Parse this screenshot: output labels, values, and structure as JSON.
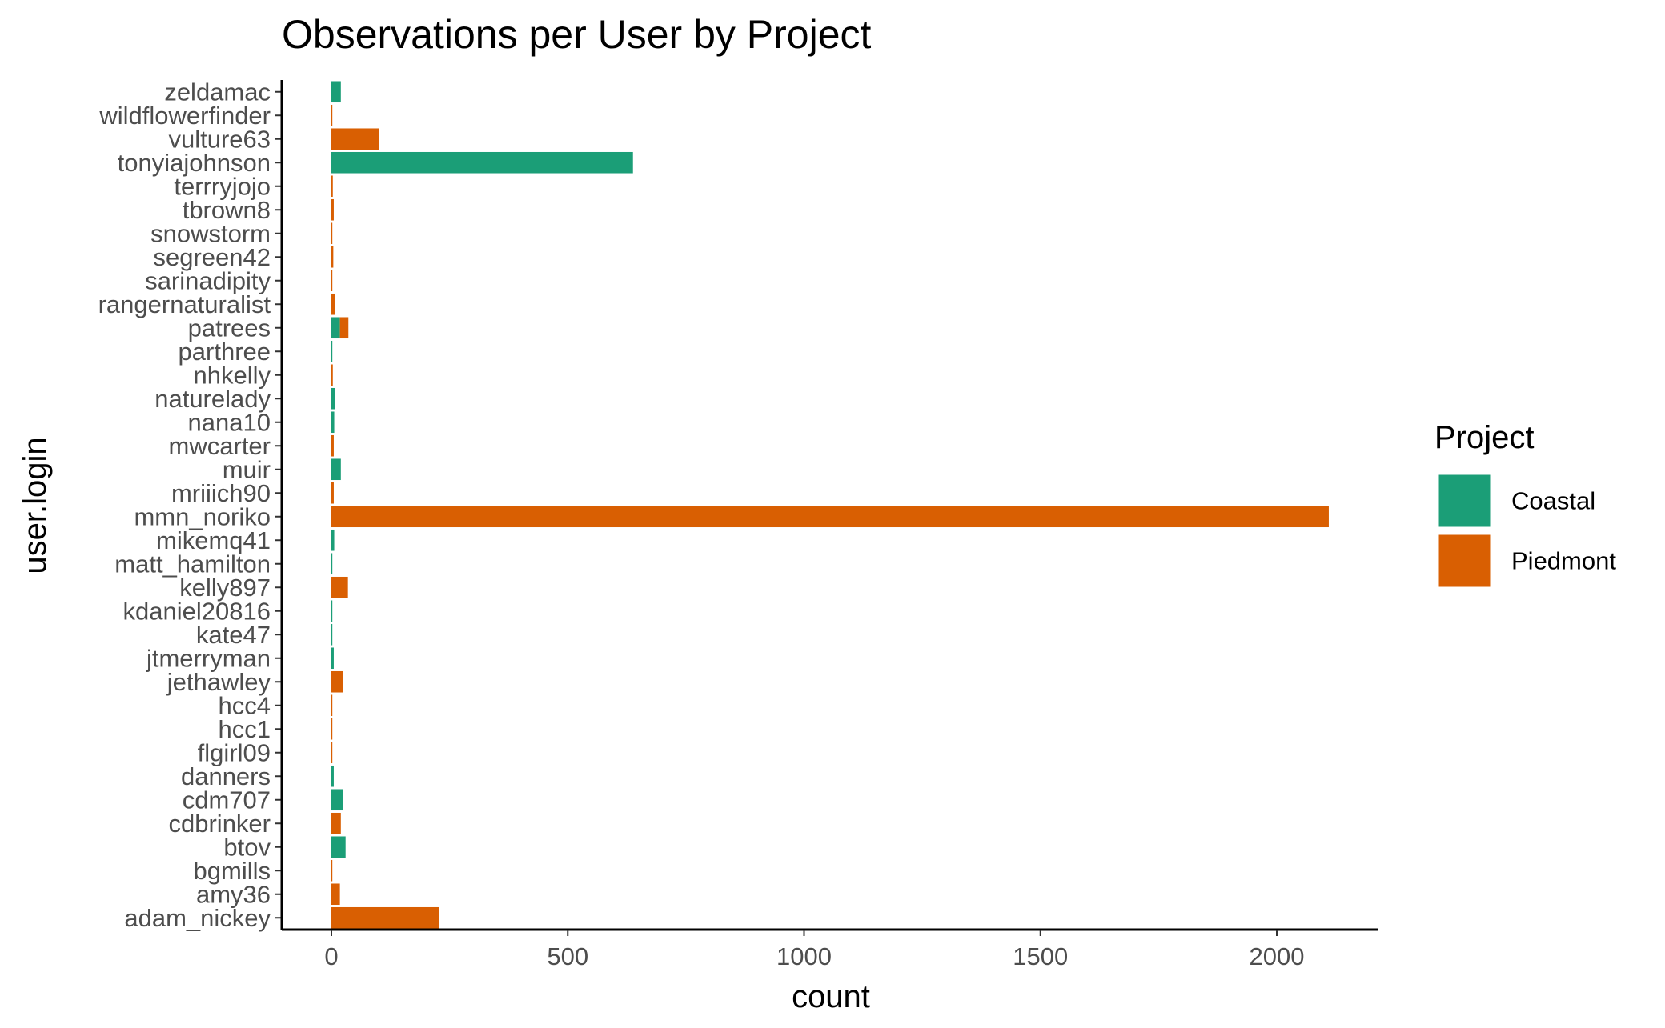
{
  "chart_data": {
    "type": "bar",
    "orientation": "horizontal",
    "stacked": true,
    "title": "Observations per User by Project",
    "xlabel": "count",
    "ylabel": "user.login",
    "xlim": [
      -100,
      2200
    ],
    "xticks": [
      0,
      500,
      1000,
      1500,
      2000
    ],
    "xtick_labels": [
      "0",
      "500",
      "1000",
      "1500",
      "2000"
    ],
    "grid": false,
    "legend_position": "right",
    "legend_title": "Project",
    "categories": [
      "zeldamac",
      "wildflowerfinder",
      "vulture63",
      "tonyiajohnson",
      "terrryjojo",
      "tbrown8",
      "snowstorm",
      "segreen42",
      "sarinadipity",
      "rangernaturalist",
      "patrees",
      "parthree",
      "nhkelly",
      "naturelady",
      "nana10",
      "mwcarter",
      "muir",
      "mriiich90",
      "mmn_noriko",
      "mikemq41",
      "matt_hamilton",
      "kelly897",
      "kdaniel20816",
      "kate47",
      "jtmerryman",
      "jethawley",
      "hcc4",
      "hcc1",
      "flgirl09",
      "danners",
      "cdm707",
      "cdbrinker",
      "btov",
      "bgmills",
      "amy36",
      "adam_nickey"
    ],
    "series": [
      {
        "name": "Coastal",
        "color": "#1b9e77",
        "values": [
          20,
          0,
          0,
          638,
          0,
          0,
          0,
          0,
          0,
          0,
          18,
          1,
          0,
          8,
          6,
          0,
          20,
          0,
          0,
          6,
          2,
          0,
          1,
          1,
          5,
          0,
          0,
          0,
          0,
          5,
          25,
          0,
          30,
          0,
          0,
          0
        ]
      },
      {
        "name": "Piedmont",
        "color": "#d95f02",
        "values": [
          0,
          1,
          100,
          0,
          3,
          5,
          1,
          4,
          2,
          7,
          18,
          0,
          3,
          0,
          0,
          5,
          0,
          5,
          2110,
          0,
          0,
          35,
          0,
          0,
          0,
          25,
          2,
          2,
          1,
          0,
          0,
          20,
          0,
          1,
          18,
          228
        ]
      }
    ]
  }
}
